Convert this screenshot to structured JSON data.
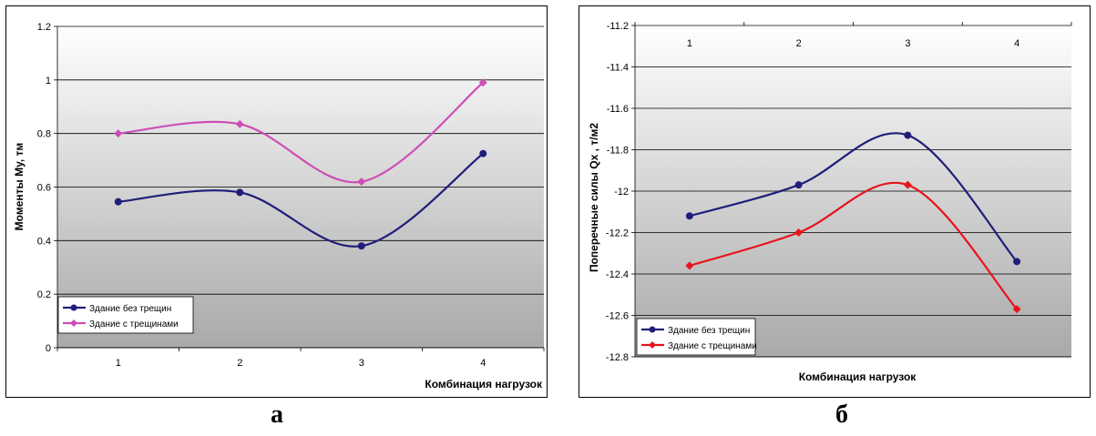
{
  "captions": {
    "left": "а",
    "right": "б"
  },
  "chart_data": [
    {
      "type": "line",
      "title": "",
      "xlabel": "Комбинация нагрузок",
      "ylabel": "Моменты My, тм",
      "categories": [
        "1",
        "2",
        "3",
        "4"
      ],
      "ylim": [
        0,
        1.2
      ],
      "yticks": [
        "0",
        "0.2",
        "0.4",
        "0.6",
        "0.8",
        "1",
        "1.2"
      ],
      "grid": true,
      "smooth": true,
      "legend_position": "bottom-left",
      "series": [
        {
          "name": "Здание без трещин",
          "values": [
            0.545,
            0.58,
            0.38,
            0.725
          ],
          "color": "#1f1f7a",
          "marker": "circle"
        },
        {
          "name": "Здание с трещинами",
          "values": [
            0.8,
            0.835,
            0.62,
            0.99
          ],
          "color": "#cc4fb6",
          "marker": "diamond"
        }
      ]
    },
    {
      "type": "line",
      "title": "",
      "xlabel": "Комбинация нагрузок",
      "ylabel": "Поперечные силы Qx , т/м2",
      "categories": [
        "1",
        "2",
        "3",
        "4"
      ],
      "ylim": [
        -12.8,
        -11.2
      ],
      "yticks": [
        "-11.2",
        "-11.4",
        "-11.6",
        "-11.8",
        "-12",
        "-12.2",
        "-12.4",
        "-12.6",
        "-12.8"
      ],
      "x_tick_position": "top",
      "grid": true,
      "smooth": true,
      "legend_position": "bottom-left",
      "series": [
        {
          "name": "Здание без трещин",
          "values": [
            -12.12,
            -11.97,
            -11.73,
            -12.34
          ],
          "color": "#1f1f7a",
          "marker": "circle"
        },
        {
          "name": "Здание с трещинами",
          "values": [
            -12.36,
            -12.2,
            -11.97,
            -12.57
          ],
          "color": "#e8141c",
          "marker": "diamond"
        }
      ]
    }
  ]
}
